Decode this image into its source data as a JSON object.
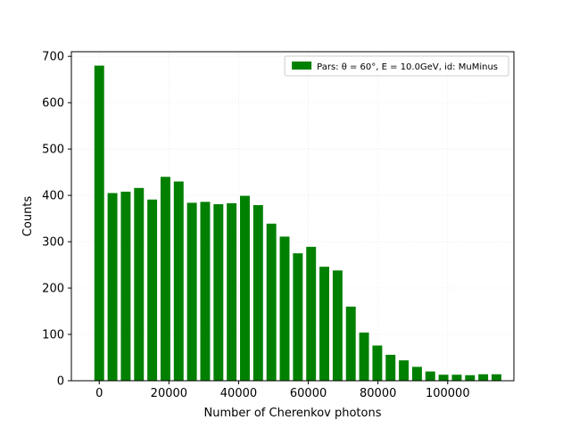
{
  "chart_data": {
    "type": "bar",
    "title": "",
    "xlabel": "Number of Cherenkov photons",
    "ylabel": "Counts",
    "xlim": [
      -8000,
      119000
    ],
    "ylim": [
      0,
      710
    ],
    "x_ticks": [
      0,
      20000,
      40000,
      60000,
      80000,
      100000
    ],
    "x_tick_labels": [
      "0",
      "20000",
      "40000",
      "60000",
      "80000",
      "100000"
    ],
    "y_ticks": [
      0,
      100,
      200,
      300,
      400,
      500,
      600,
      700
    ],
    "y_tick_labels": [
      "0",
      "100",
      "200",
      "300",
      "400",
      "500",
      "600",
      "700"
    ],
    "grid": true,
    "legend_position": "top-right",
    "bar_color": "#008000",
    "bar_width": 2800,
    "series": [
      {
        "name": "Pars: θ = 60°, E = 10.0GeV, id: MuMinus",
        "x": [
          0,
          3800,
          7600,
          11400,
          15200,
          19000,
          22800,
          26600,
          30400,
          34200,
          38000,
          41800,
          45600,
          49400,
          53200,
          57000,
          60800,
          64600,
          68400,
          72200,
          76000,
          79800,
          83600,
          87400,
          91200,
          95000,
          98800,
          102600,
          106400,
          110200,
          114000
        ],
        "values": [
          680,
          405,
          408,
          416,
          391,
          440,
          430,
          384,
          386,
          381,
          383,
          399,
          379,
          339,
          311,
          275,
          289,
          246,
          238,
          160,
          104,
          76,
          56,
          44,
          30,
          20,
          13,
          13,
          12,
          14,
          14
        ]
      }
    ]
  }
}
